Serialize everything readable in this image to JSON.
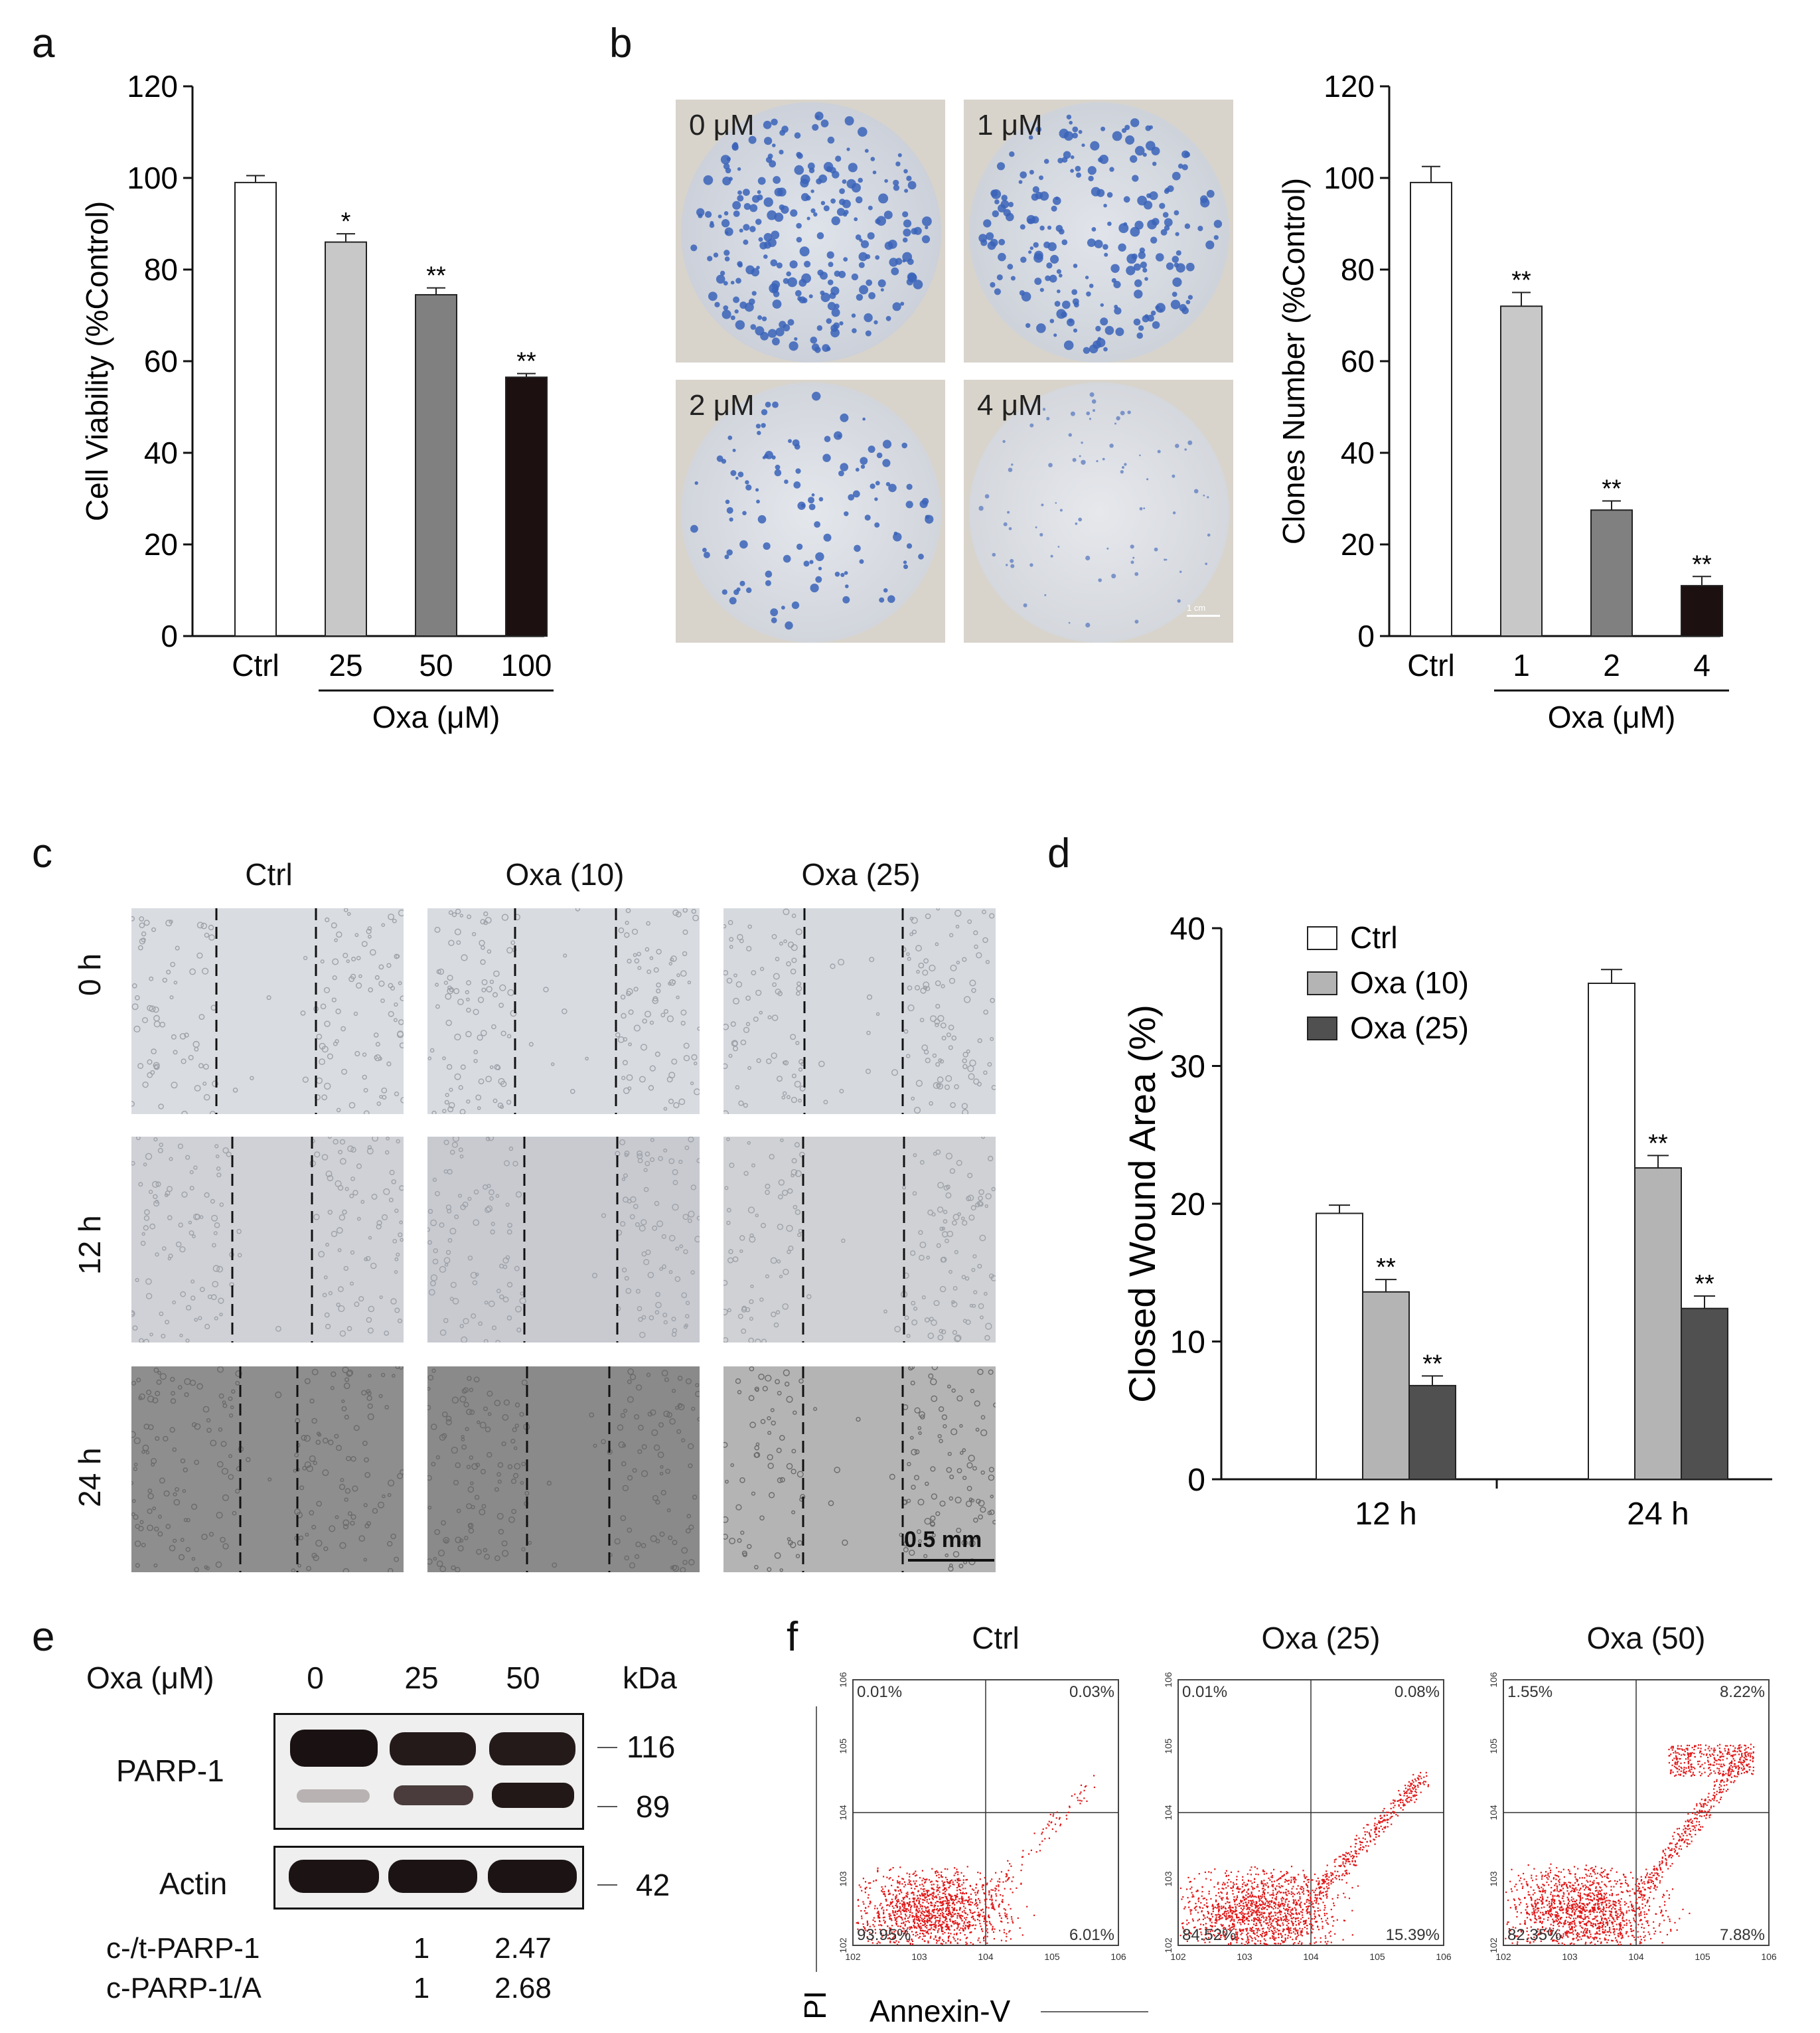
{
  "panel_letters": [
    "a",
    "b",
    "c",
    "d",
    "e",
    "f"
  ],
  "chart_data": [
    {
      "panel": "a",
      "type": "bar",
      "ylabel": "Cell Viability (%Control)",
      "ylim": [
        0,
        120
      ],
      "yticks": [
        "0",
        "20",
        "40",
        "60",
        "80",
        "100",
        "120"
      ],
      "categories": [
        "Ctrl",
        "25",
        "50",
        "100"
      ],
      "values": [
        99,
        86,
        74.5,
        56.5
      ],
      "errors": [
        1.5,
        1.8,
        1.5,
        0.8
      ],
      "significance": [
        "",
        "*",
        "**",
        "**"
      ],
      "colors": [
        "#ffffff",
        "#c8c8c8",
        "#808080",
        "#1c1010"
      ],
      "group_label": "Oxa (μM)"
    },
    {
      "panel": "b",
      "type": "bar",
      "ylabel": "Clones Number (%Control)",
      "ylim": [
        0,
        120
      ],
      "yticks": [
        "0",
        "20",
        "40",
        "60",
        "80",
        "100",
        "120"
      ],
      "categories": [
        "Ctrl",
        "1",
        "2",
        "4"
      ],
      "values": [
        99,
        72,
        27.5,
        11
      ],
      "errors": [
        3.5,
        3,
        2,
        2
      ],
      "significance": [
        "",
        "**",
        "**",
        "**"
      ],
      "colors": [
        "#ffffff",
        "#c8c8c8",
        "#808080",
        "#1c1010"
      ],
      "group_label": "Oxa (μM)"
    },
    {
      "panel": "d",
      "type": "bar",
      "ylabel": "Closed Wound Area (%)",
      "ylim": [
        0,
        40
      ],
      "yticks": [
        "0",
        "10",
        "20",
        "30",
        "40"
      ],
      "categories": [
        "12 h",
        "24 h"
      ],
      "series": [
        {
          "name": "Ctrl",
          "values": [
            19.3,
            36
          ],
          "errors": [
            0.6,
            1
          ],
          "significance": [
            "",
            ""
          ],
          "color": "#ffffff"
        },
        {
          "name": "Oxa (10)",
          "values": [
            13.6,
            22.6
          ],
          "errors": [
            0.9,
            0.9
          ],
          "significance": [
            "**",
            "**"
          ],
          "color": "#b4b4b4"
        },
        {
          "name": "Oxa (25)",
          "values": [
            6.8,
            12.4
          ],
          "errors": [
            0.7,
            0.9
          ],
          "significance": [
            "**",
            "**"
          ],
          "color": "#505050"
        }
      ],
      "legend": "top-left"
    }
  ],
  "panel_b": {
    "plates": [
      "0 μM",
      "1 μM",
      "2 μM",
      "4 μM"
    ],
    "scale_bar": "1 cm"
  },
  "panel_c": {
    "columns": [
      "Ctrl",
      "Oxa (10)",
      "Oxa (25)"
    ],
    "rows": [
      "0 h",
      "12 h",
      "24 h"
    ],
    "scale_bar": "0.5 mm"
  },
  "panel_e": {
    "header_label": "Oxa  (μM)",
    "lanes": [
      "0",
      "25",
      "50"
    ],
    "kda_label": "kDa",
    "parp_label": "PARP-1",
    "actin_label": "Actin",
    "markers": [
      "116",
      "89",
      "42"
    ],
    "quant": [
      {
        "label": "c-/t-PARP-1",
        "values": [
          "",
          "1",
          "2.47"
        ]
      },
      {
        "label": "c-PARP-1/A",
        "values": [
          "",
          "1",
          "2.68"
        ]
      }
    ]
  },
  "panel_f": {
    "titles": [
      "Ctrl",
      "Oxa (25)",
      "Oxa (50)"
    ],
    "quadrants": [
      {
        "ul": "0.01%",
        "ur": "0.03%",
        "ll": "93.95%",
        "lr": "6.01%"
      },
      {
        "ul": "0.01%",
        "ur": "0.08%",
        "ll": "84.52%",
        "lr": "15.39%"
      },
      {
        "ul": "1.55%",
        "ur": "8.22%",
        "ll": "82.35%",
        "lr": "7.88%"
      }
    ],
    "ylabel": "PI",
    "xlabel": "Annexin-V"
  }
}
